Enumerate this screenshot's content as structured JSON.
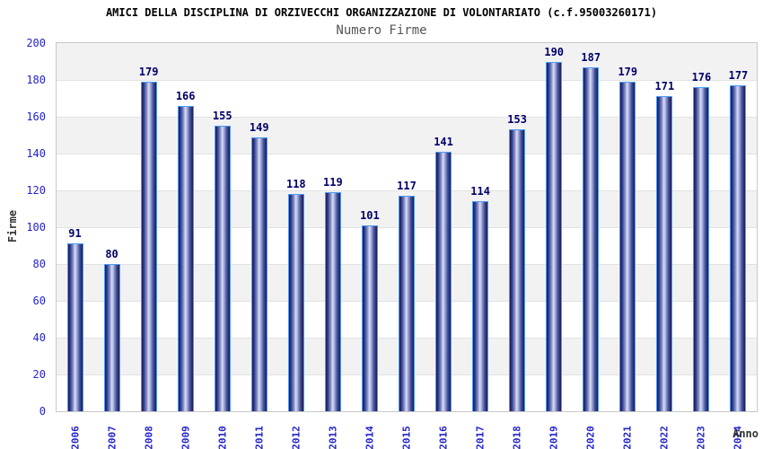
{
  "chart_data": {
    "type": "bar",
    "title": "AMICI DELLA DISCIPLINA DI ORZIVECCHI ORGANIZZAZIONE DI VOLONTARIATO (c.f.95003260171)",
    "subtitle": "Numero Firme",
    "xlabel": "Anno",
    "ylabel": "Firme",
    "categories": [
      "2006",
      "2007",
      "2008",
      "2009",
      "2010",
      "2011",
      "2012",
      "2013",
      "2014",
      "2015",
      "2016",
      "2017",
      "2018",
      "2019",
      "2020",
      "2021",
      "2022",
      "2023",
      "2024"
    ],
    "values": [
      91,
      80,
      179,
      166,
      155,
      149,
      118,
      119,
      101,
      117,
      141,
      114,
      153,
      190,
      187,
      179,
      171,
      176,
      177
    ],
    "ylim": [
      0,
      200
    ],
    "ytick_step": 20,
    "grid": true,
    "legend_position": "none",
    "value_labels_shown": true,
    "colors": {
      "tick_label": "#2323cc",
      "value_label": "#00006a",
      "bar_border": "#4e9cf5",
      "bar_gradient": "linear-gradient(90deg,#161c55 0%,#2c3585 12%,#8591c8 34%,#d9ddf3 47%,#b3bce6 56%,#4a549f 78%,#161c55 100%)",
      "band_odd": "#f2f2f2",
      "band_even": "#ffffff",
      "gridline": "#e2e2e2",
      "plot_border": "#c9c9c9",
      "title": "#000000",
      "subtitle": "#555555",
      "axis_title": "#333333",
      "background": "#ffffff"
    }
  }
}
